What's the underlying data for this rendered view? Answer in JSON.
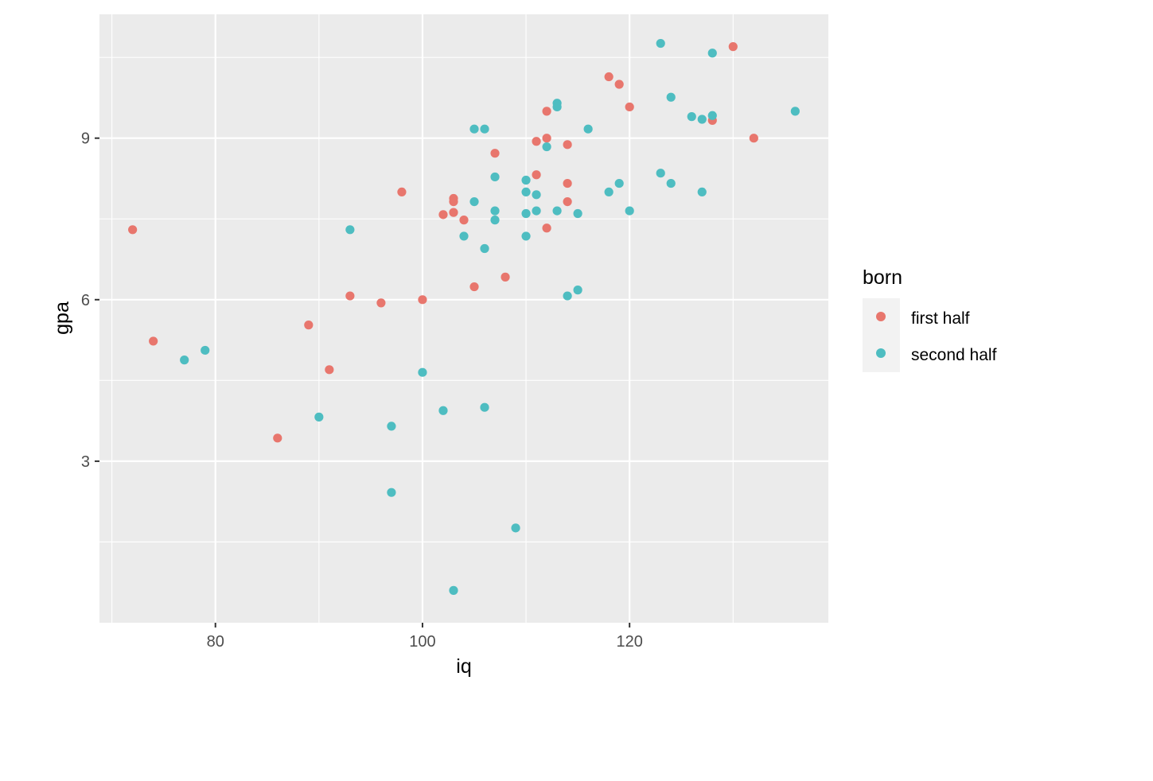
{
  "chart_data": {
    "type": "scatter",
    "xlabel": "iq",
    "ylabel": "gpa",
    "xlim": [
      68.8,
      139.2
    ],
    "ylim": [
      0.0,
      11.3
    ],
    "x_ticks": [
      80,
      100,
      120
    ],
    "y_ticks": [
      3,
      6,
      9
    ],
    "grid": true,
    "panel_background": "#ebebeb",
    "legend": {
      "title": "born",
      "placement": "right",
      "entries": [
        "first half",
        "second half"
      ]
    },
    "series": [
      {
        "name": "first half",
        "color": "#e8766d",
        "points": [
          [
            72,
            7.3
          ],
          [
            74,
            5.23
          ],
          [
            86,
            3.43
          ],
          [
            89,
            5.53
          ],
          [
            91,
            4.7
          ],
          [
            93,
            6.07
          ],
          [
            96,
            5.94
          ],
          [
            98,
            8.0
          ],
          [
            100,
            6.0
          ],
          [
            102,
            7.58
          ],
          [
            103,
            7.62
          ],
          [
            103,
            7.82
          ],
          [
            103,
            7.88
          ],
          [
            104,
            7.48
          ],
          [
            105,
            6.24
          ],
          [
            107,
            8.72
          ],
          [
            108,
            6.42
          ],
          [
            111,
            8.32
          ],
          [
            111,
            8.94
          ],
          [
            112,
            9.0
          ],
          [
            112,
            9.5
          ],
          [
            112,
            7.33
          ],
          [
            114,
            8.16
          ],
          [
            114,
            7.82
          ],
          [
            114,
            8.88
          ],
          [
            118,
            10.14
          ],
          [
            119,
            10.0
          ],
          [
            120,
            9.58
          ],
          [
            128,
            9.33
          ],
          [
            130,
            10.7
          ],
          [
            132,
            9.0
          ]
        ]
      },
      {
        "name": "second half",
        "color": "#4ebdc1",
        "points": [
          [
            77,
            4.88
          ],
          [
            79,
            5.06
          ],
          [
            90,
            3.82
          ],
          [
            93,
            7.3
          ],
          [
            97,
            3.65
          ],
          [
            97,
            2.42
          ],
          [
            100,
            4.65
          ],
          [
            102,
            3.94
          ],
          [
            103,
            0.6
          ],
          [
            104,
            7.18
          ],
          [
            105,
            7.82
          ],
          [
            105,
            9.17
          ],
          [
            106,
            9.17
          ],
          [
            106,
            6.95
          ],
          [
            106,
            4.0
          ],
          [
            107,
            8.28
          ],
          [
            107,
            7.65
          ],
          [
            107,
            7.48
          ],
          [
            109,
            1.76
          ],
          [
            110,
            8.22
          ],
          [
            110,
            8.0
          ],
          [
            110,
            7.6
          ],
          [
            110,
            7.18
          ],
          [
            111,
            7.95
          ],
          [
            111,
            7.65
          ],
          [
            112,
            8.84
          ],
          [
            113,
            9.65
          ],
          [
            113,
            9.58
          ],
          [
            113,
            7.65
          ],
          [
            114,
            6.07
          ],
          [
            115,
            7.6
          ],
          [
            115,
            6.18
          ],
          [
            116,
            9.17
          ],
          [
            118,
            8.0
          ],
          [
            119,
            8.16
          ],
          [
            120,
            7.65
          ],
          [
            123,
            10.76
          ],
          [
            123,
            8.35
          ],
          [
            124,
            9.76
          ],
          [
            124,
            8.16
          ],
          [
            126,
            9.4
          ],
          [
            127,
            9.35
          ],
          [
            127,
            8.0
          ],
          [
            128,
            10.58
          ],
          [
            128,
            9.42
          ],
          [
            136,
            9.5
          ]
        ]
      }
    ]
  }
}
